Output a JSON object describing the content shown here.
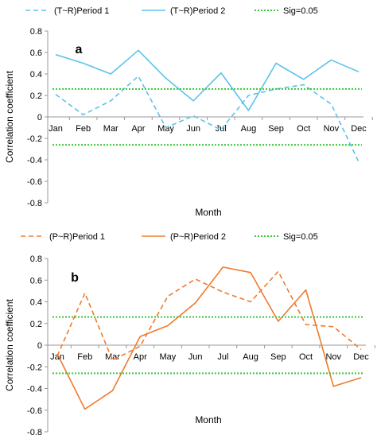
{
  "chart_data": [
    {
      "type": "line",
      "panel_label": "a",
      "categories": [
        "Jan",
        "Feb",
        "Mar",
        "Apr",
        "May",
        "Jun",
        "Jul",
        "Aug",
        "Sep",
        "Oct",
        "Nov",
        "Dec"
      ],
      "series": [
        {
          "name": "(T~R)Period 1",
          "style": "dashed",
          "color": "#5bc3ec",
          "values": [
            0.21,
            0.02,
            0.15,
            0.38,
            -0.1,
            0.01,
            -0.12,
            0.2,
            0.26,
            0.3,
            0.12,
            -0.42
          ]
        },
        {
          "name": "(T~R)Period 2",
          "style": "solid",
          "color": "#5bc3ec",
          "values": [
            0.58,
            0.5,
            0.4,
            0.62,
            0.36,
            0.15,
            0.41,
            0.06,
            0.5,
            0.35,
            0.53,
            0.42
          ]
        },
        {
          "name": "Sig=0.05",
          "style": "dotted",
          "color": "#36c936",
          "levels": [
            0.26,
            -0.26
          ]
        }
      ],
      "xlabel": "Month",
      "ylabel": "Correlation coefficient",
      "ylim": [
        -0.8,
        0.8
      ],
      "yticks": [
        "0.8",
        "0.6",
        "0.4",
        "0.2",
        "0",
        "-0.2",
        "-0.4",
        "-0.6",
        "-0.8"
      ],
      "legend": "top",
      "grid": false
    },
    {
      "type": "line",
      "panel_label": "b",
      "categories": [
        "Jan",
        "Feb",
        "Mar",
        "Apr",
        "May",
        "Jun",
        "Jul",
        "Aug",
        "Sep",
        "Oct",
        "Nov",
        "Dec"
      ],
      "series": [
        {
          "name": "(P~R)Period 1",
          "style": "dashed",
          "color": "#f07a2e",
          "values": [
            -0.1,
            0.48,
            -0.14,
            -0.01,
            0.45,
            0.61,
            0.49,
            0.4,
            0.68,
            0.19,
            0.17,
            -0.04
          ]
        },
        {
          "name": "(P~R)Period 2",
          "style": "solid",
          "color": "#f07a2e",
          "values": [
            -0.08,
            -0.59,
            -0.42,
            0.08,
            0.18,
            0.39,
            0.72,
            0.67,
            0.22,
            0.51,
            -0.38,
            -0.3
          ]
        },
        {
          "name": "Sig=0.05",
          "style": "dotted",
          "color": "#36c936",
          "levels": [
            0.26,
            -0.26
          ]
        }
      ],
      "xlabel": "Month",
      "ylabel": "Correlation coefficient",
      "ylim": [
        -0.8,
        0.8
      ],
      "yticks": [
        "0.8",
        "0.6",
        "0.4",
        "0.2",
        "0",
        "-0.2",
        "-0.4",
        "-0.6",
        "-0.8"
      ],
      "legend": "top",
      "grid": false
    }
  ]
}
